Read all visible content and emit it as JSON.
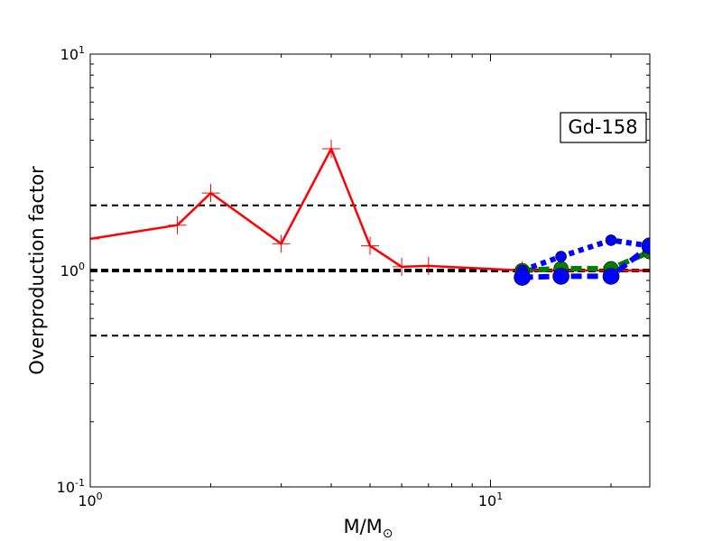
{
  "chart_data": {
    "type": "line",
    "title": "",
    "xlabel": "M/M",
    "xlabel_sub": "⊙",
    "ylabel": "Overproduction factor",
    "x_scale": "log",
    "y_scale": "log",
    "xlim": [
      1,
      25
    ],
    "ylim": [
      0.1,
      10
    ],
    "x_ticks": [
      {
        "value": 1,
        "base": "10",
        "exp": "0"
      },
      {
        "value": 10,
        "base": "10",
        "exp": "1"
      }
    ],
    "y_ticks": [
      {
        "value": 0.1,
        "base": "10",
        "exp": "-1"
      },
      {
        "value": 1,
        "base": "10",
        "exp": "0"
      },
      {
        "value": 10,
        "base": "10",
        "exp": "1"
      }
    ],
    "grid": false,
    "annotation": "Gd-158",
    "reference_lines": [
      {
        "y": 2.0,
        "style": "dashed",
        "color": "#000000",
        "weight": "thin"
      },
      {
        "y": 1.0,
        "style": "dashed",
        "color": "#000000",
        "weight": "thick"
      },
      {
        "y": 0.5,
        "style": "dashed",
        "color": "#000000",
        "weight": "thin"
      }
    ],
    "series": [
      {
        "color": "#ff0000",
        "line": "solid",
        "marker": "plus",
        "x": [
          1.0,
          1.65,
          2.0,
          3.0,
          4.0,
          5.0,
          6.0,
          7.0,
          12.0,
          15.0,
          20.0,
          25.0
        ],
        "y": [
          1.4,
          1.62,
          2.28,
          1.33,
          3.65,
          1.3,
          1.04,
          1.05,
          1.0,
          1.0,
          1.0,
          1.0
        ]
      },
      {
        "color": "#008000",
        "line": "dashed",
        "marker": "circle",
        "x": [
          12.0,
          15.0,
          20.0,
          25.0
        ],
        "y": [
          1.0,
          1.02,
          1.02,
          1.22
        ]
      },
      {
        "color": "#0000ff",
        "line": "dotted",
        "marker": "circle",
        "x": [
          12.0,
          15.0,
          20.0,
          25.0
        ],
        "y": [
          1.0,
          1.16,
          1.38,
          1.3
        ]
      },
      {
        "color": "#0000ff",
        "line": "dashed",
        "marker": "circle",
        "x": [
          12.0,
          15.0,
          20.0,
          25.0
        ],
        "y": [
          0.93,
          0.94,
          0.94,
          1.3
        ]
      }
    ]
  }
}
